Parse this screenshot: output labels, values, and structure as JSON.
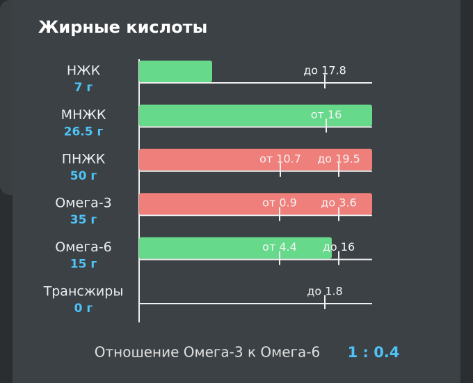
{
  "title": "Жирные кислоты",
  "rows": [
    {
      "name": "НЖК",
      "amount": "7 г",
      "markers": [
        "до 17.8"
      ]
    },
    {
      "name": "МНЖК",
      "amount": "26.5 г",
      "markers": [
        "от 16"
      ]
    },
    {
      "name": "ПНЖК",
      "amount": "50 г",
      "markers": [
        "от 10.7",
        "до 19.5"
      ]
    },
    {
      "name": "Омега-3",
      "amount": "35 г",
      "markers": [
        "от 0.9",
        "до 3.6"
      ]
    },
    {
      "name": "Омега-6",
      "amount": "15 г",
      "markers": [
        "от 4.4",
        "до 16"
      ]
    },
    {
      "name": "Трансжиры",
      "amount": "0 г",
      "markers": [
        "до 1.8"
      ]
    }
  ],
  "ratio": {
    "label": "Отношение Омега-3 к Омега-6",
    "value": "1 : 0.4"
  }
}
